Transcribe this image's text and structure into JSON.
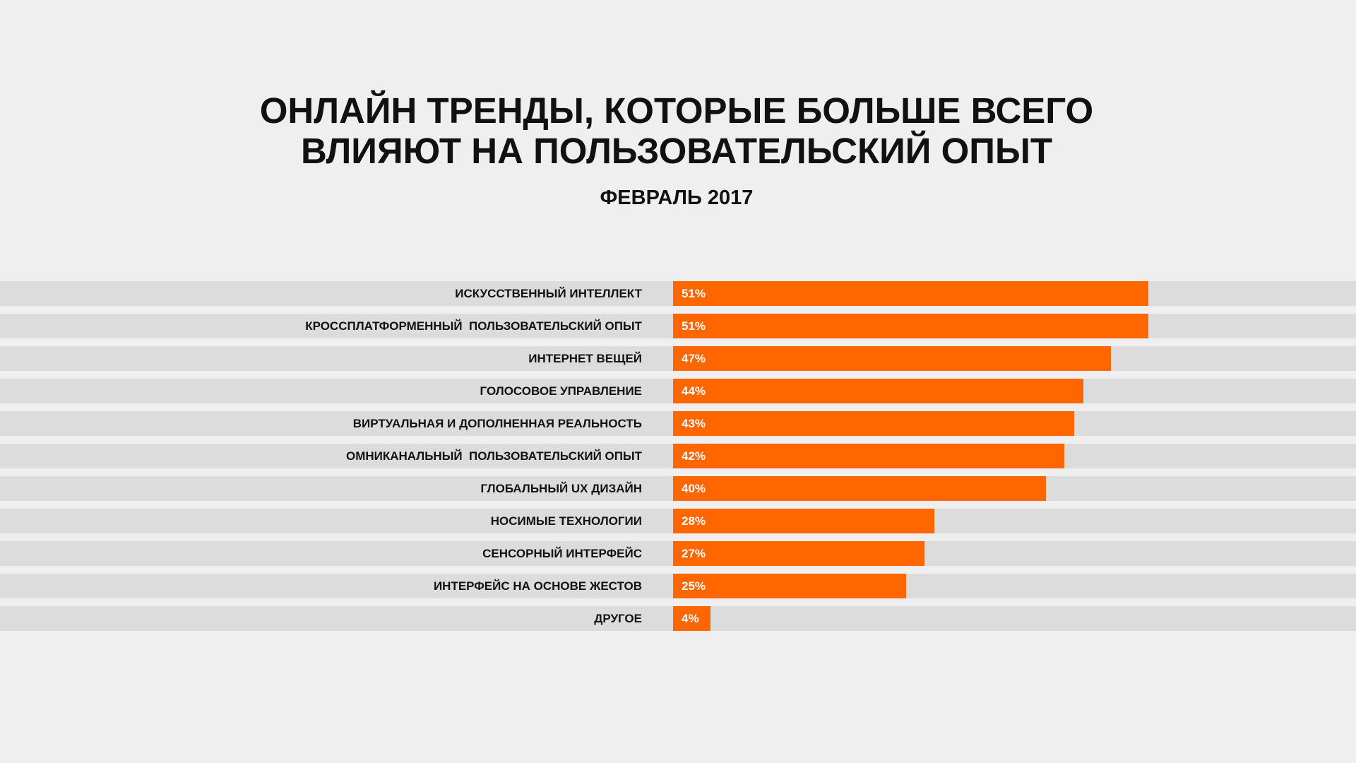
{
  "chart_data": {
    "type": "bar",
    "orientation": "horizontal",
    "title": "ОНЛАЙН ТРЕНДЫ, КОТОРЫЕ БОЛЬШЕ ВСЕГО ВЛИЯЮТ НА ПОЛЬЗОВАТЕЛЬСКИЙ ОПЫТ",
    "title_lines": [
      "ОНЛАЙН ТРЕНДЫ, КОТОРЫЕ БОЛЬШЕ ВСЕГО",
      "ВЛИЯЮТ НА ПОЛЬЗОВАТЕЛЬСКИЙ ОПЫТ"
    ],
    "subtitle": "ФЕВРАЛЬ 2017",
    "categories": [
      "ИСКУССТВЕННЫЙ ИНТЕЛЛЕКТ",
      "КРОССПЛАТФОРМЕННЫЙ  ПОЛЬЗОВАТЕЛЬСКИЙ ОПЫТ",
      "ИНТЕРНЕТ ВЕЩЕЙ",
      "ГОЛОСОВОЕ УПРАВЛЕНИЕ",
      "ВИРТУАЛЬНАЯ И ДОПОЛНЕННАЯ РЕАЛЬНОСТЬ",
      "ОМНИКАНАЛЬНЫЙ  ПОЛЬЗОВАТЕЛЬСКИЙ ОПЫТ",
      "ГЛОБАЛЬНЫЙ UX ДИЗАЙН",
      "НОСИМЫЕ ТЕХНОЛОГИИ",
      "СЕНСОРНЫЙ ИНТЕРФЕЙС",
      "ИНТЕРФЕЙС НА ОСНОВЕ ЖЕСТОВ",
      "ДРУГОЕ"
    ],
    "values": [
      51,
      51,
      47,
      44,
      43,
      42,
      40,
      28,
      27,
      25,
      4
    ],
    "value_labels": [
      "51%",
      "51%",
      "47%",
      "44%",
      "43%",
      "42%",
      "40%",
      "28%",
      "27%",
      "25%",
      "4%"
    ],
    "unit": "%",
    "grid": false,
    "colors": {
      "bar": "#ff6600",
      "track": "#dcdcdc",
      "background": "#efefef",
      "value_text": "#ffffff"
    }
  }
}
